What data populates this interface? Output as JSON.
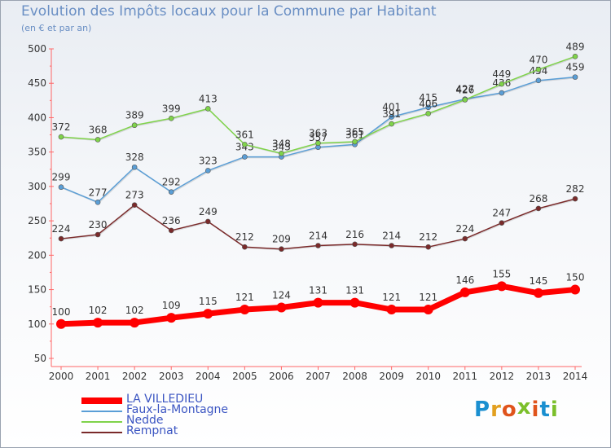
{
  "title": "Evolution des Impôts locaux pour la Commune par Habitant",
  "subtitle": "(en € et par an)",
  "logo": {
    "text": "Proxiti",
    "colors": [
      "#1a8fd0",
      "#e2a020",
      "#e0541c",
      "#7bbf2a",
      "#e0541c",
      "#1a8fd0",
      "#7bbf2a"
    ]
  },
  "chart_data": {
    "type": "line",
    "x": [
      "2000",
      "2001",
      "2002",
      "2003",
      "2004",
      "2005",
      "2006",
      "2007",
      "2008",
      "2009",
      "2010",
      "2011",
      "2012",
      "2013",
      "2014"
    ],
    "ylim": [
      50,
      500
    ],
    "yticks": [
      50,
      100,
      150,
      200,
      250,
      300,
      350,
      400,
      450,
      500
    ],
    "grid": false,
    "legend_placement": "bottom-left",
    "series": [
      {
        "name": "LA VILLEDIEU",
        "color": "#ff0000",
        "values": [
          100,
          102,
          102,
          109,
          115,
          121,
          124,
          131,
          131,
          121,
          121,
          146,
          155,
          145,
          150
        ]
      },
      {
        "name": "Faux-la-Montagne",
        "color": "#5a9ed6",
        "values": [
          299,
          277,
          328,
          292,
          323,
          343,
          343,
          357,
          361,
          401,
          415,
          427,
          436,
          454,
          459
        ]
      },
      {
        "name": "Nedde",
        "color": "#7fd34a",
        "values": [
          372,
          368,
          389,
          399,
          413,
          361,
          348,
          363,
          365,
          391,
          406,
          426,
          449,
          470,
          489
        ]
      },
      {
        "name": "Rempnat",
        "color": "#7a2a2a",
        "values": [
          224,
          230,
          273,
          236,
          249,
          212,
          209,
          214,
          216,
          214,
          212,
          224,
          247,
          268,
          282
        ]
      }
    ]
  }
}
